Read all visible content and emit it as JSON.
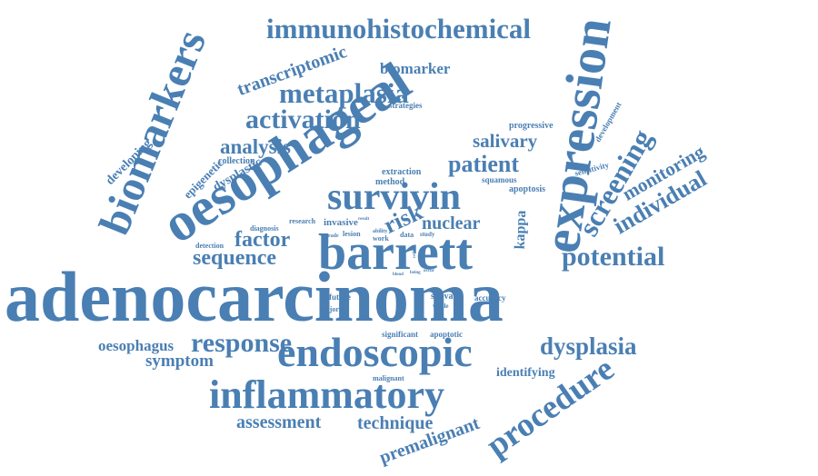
{
  "word_color": "#4a7fb3",
  "background_color": "#ffffff",
  "words": [
    "adenocarcinoma",
    "oesophageal",
    "barrett",
    "survivin",
    "inflammatory",
    "endoscopic",
    "expression",
    "biomarkers",
    "immunohistochemical",
    "metaplasia",
    "activation",
    "procedure",
    "dysplasia",
    "response",
    "potential",
    "screening",
    "individual",
    "sequence",
    "factor",
    "analysis",
    "patient",
    "salivary",
    "monitoring",
    "transcriptomic",
    "assessment",
    "technique",
    "premalignant",
    "oesophagus",
    "symptom",
    "risk",
    "nuclear",
    "kappa",
    "biomarker",
    "dysplastic",
    "epigenetic",
    "developing",
    "identifying",
    "progressive",
    "development",
    "sensitivity",
    "collection",
    "extraction",
    "method",
    "squamous",
    "apoptosis",
    "strategies",
    "invasive",
    "research",
    "diagnosis",
    "detection",
    "grade",
    "lesion",
    "ability",
    "work",
    "data",
    "study",
    "future",
    "majority",
    "saliva",
    "whole",
    "accuracy",
    "significant",
    "apoptotic",
    "malignant",
    "level",
    "result",
    "cancer",
    "cells",
    "blood",
    "occur",
    "being"
  ]
}
